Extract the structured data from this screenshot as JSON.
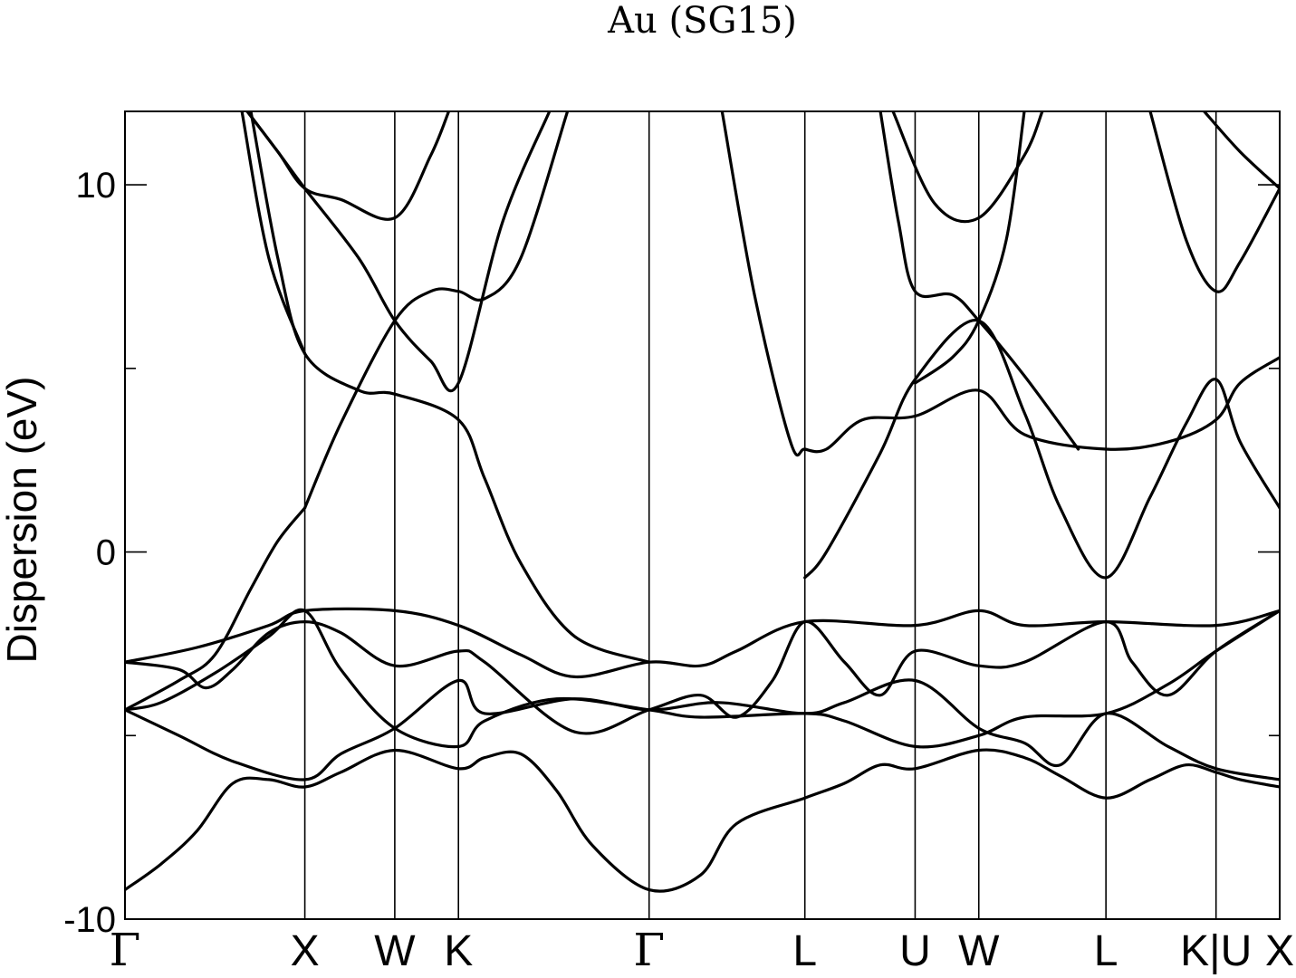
{
  "chart_data": {
    "type": "line",
    "title": "Au (SG15)",
    "xlabel": "",
    "ylabel": "Dispersion (eV)",
    "ylim": [
      -10,
      12
    ],
    "yticks": [
      -10,
      0,
      10
    ],
    "yticks_minor": [
      -5,
      5
    ],
    "grid": false,
    "legend": "none",
    "kpoints": [
      {
        "label": "Γ",
        "x": 0
      },
      {
        "label": "X",
        "x": 1.0
      },
      {
        "label": "W",
        "x": 1.5
      },
      {
        "label": "K",
        "x": 1.854
      },
      {
        "label": "Γ",
        "x": 2.914
      },
      {
        "label": "L",
        "x": 3.78
      },
      {
        "label": "U",
        "x": 4.393
      },
      {
        "label": "W",
        "x": 4.747
      },
      {
        "label": "L",
        "x": 5.454
      },
      {
        "label": "K|U",
        "x": 6.066
      },
      {
        "label": "X",
        "x": 6.42
      }
    ],
    "series": [
      {
        "points": [
          [
            0,
            -9.2
          ],
          [
            0.2,
            -8.5
          ],
          [
            0.4,
            -7.6
          ],
          [
            0.6,
            -6.3
          ],
          [
            0.8,
            -6.2
          ],
          [
            1.0,
            -6.4
          ],
          [
            1.2,
            -6.0
          ],
          [
            1.5,
            -5.4
          ],
          [
            1.854,
            -5.9
          ],
          [
            2.0,
            -5.6
          ],
          [
            2.2,
            -5.5
          ],
          [
            2.4,
            -6.5
          ],
          [
            2.6,
            -8.0
          ],
          [
            2.914,
            -9.2
          ],
          [
            3.2,
            -8.8
          ],
          [
            3.4,
            -7.4
          ],
          [
            3.78,
            -6.7
          ],
          [
            4.0,
            -6.3
          ],
          [
            4.2,
            -5.8
          ],
          [
            4.393,
            -5.9
          ],
          [
            4.747,
            -5.4
          ],
          [
            5.0,
            -5.6
          ],
          [
            5.2,
            -6.1
          ],
          [
            5.454,
            -6.7
          ],
          [
            5.7,
            -6.2
          ],
          [
            5.9,
            -5.8
          ],
          [
            6.066,
            -6.0
          ],
          [
            6.2,
            -6.2
          ],
          [
            6.42,
            -6.4
          ]
        ]
      },
      {
        "points": [
          [
            0,
            -4.3
          ],
          [
            0.3,
            -5.0
          ],
          [
            0.6,
            -5.7
          ],
          [
            1.0,
            -6.2
          ],
          [
            1.2,
            -5.5
          ],
          [
            1.5,
            -4.8
          ],
          [
            1.854,
            -3.5
          ],
          [
            2.0,
            -4.4
          ],
          [
            2.5,
            -4.0
          ],
          [
            2.914,
            -4.3
          ],
          [
            3.3,
            -4.1
          ],
          [
            3.78,
            -4.4
          ],
          [
            4.0,
            -4.1
          ],
          [
            4.393,
            -3.5
          ],
          [
            4.747,
            -4.8
          ],
          [
            5.0,
            -5.2
          ],
          [
            5.2,
            -5.8
          ],
          [
            5.454,
            -4.4
          ],
          [
            5.8,
            -5.3
          ],
          [
            6.066,
            -5.9
          ],
          [
            6.42,
            -6.2
          ]
        ]
      },
      {
        "points": [
          [
            0,
            -4.3
          ],
          [
            0.2,
            -4.1
          ],
          [
            0.5,
            -3.3
          ],
          [
            0.8,
            -2.3
          ],
          [
            1.0,
            -1.6
          ],
          [
            1.2,
            -3.2
          ],
          [
            1.5,
            -4.8
          ],
          [
            1.854,
            -5.3
          ],
          [
            2.0,
            -4.6
          ],
          [
            2.4,
            -4.0
          ],
          [
            2.914,
            -4.3
          ],
          [
            3.2,
            -4.5
          ],
          [
            3.78,
            -4.4
          ],
          [
            4.0,
            -4.6
          ],
          [
            4.393,
            -5.3
          ],
          [
            4.747,
            -5.0
          ],
          [
            5.0,
            -4.5
          ],
          [
            5.454,
            -4.4
          ],
          [
            5.8,
            -3.6
          ],
          [
            6.066,
            -2.7
          ],
          [
            6.42,
            -1.6
          ]
        ]
      },
      {
        "points": [
          [
            0,
            -3.0
          ],
          [
            0.3,
            -3.2
          ],
          [
            0.45,
            -3.7
          ],
          [
            0.6,
            -3.2
          ],
          [
            0.8,
            -2.2
          ],
          [
            1.0,
            -1.9
          ],
          [
            1.2,
            -2.2
          ],
          [
            1.5,
            -3.1
          ],
          [
            1.854,
            -2.7
          ],
          [
            2.0,
            -3.0
          ],
          [
            2.5,
            -4.9
          ],
          [
            2.914,
            -4.3
          ],
          [
            3.2,
            -3.9
          ],
          [
            3.4,
            -4.5
          ],
          [
            3.6,
            -3.5
          ],
          [
            3.78,
            -1.9
          ],
          [
            4.0,
            -3.0
          ],
          [
            4.2,
            -3.9
          ],
          [
            4.393,
            -2.7
          ],
          [
            4.747,
            -3.1
          ],
          [
            5.0,
            -3.0
          ],
          [
            5.454,
            -1.9
          ],
          [
            5.6,
            -3.0
          ],
          [
            5.8,
            -3.9
          ],
          [
            6.066,
            -2.7
          ],
          [
            6.42,
            -1.6
          ]
        ]
      },
      {
        "points": [
          [
            0,
            -3.0
          ],
          [
            0.4,
            -2.6
          ],
          [
            0.8,
            -2.0
          ],
          [
            1.0,
            -1.6
          ],
          [
            1.5,
            -1.6
          ],
          [
            1.854,
            -2.0
          ],
          [
            2.2,
            -2.8
          ],
          [
            2.5,
            -3.4
          ],
          [
            2.914,
            -3.0
          ],
          [
            3.2,
            -3.1
          ],
          [
            3.4,
            -2.7
          ],
          [
            3.78,
            -1.9
          ],
          [
            4.393,
            -2.0
          ],
          [
            4.747,
            -1.6
          ],
          [
            5.0,
            -2.0
          ],
          [
            5.454,
            -1.9
          ],
          [
            6.066,
            -2.0
          ],
          [
            6.42,
            -1.6
          ]
        ]
      },
      {
        "points": [
          [
            0.7,
            12.0
          ],
          [
            0.85,
            8.0
          ],
          [
            1.0,
            5.4
          ],
          [
            1.3,
            4.4
          ],
          [
            1.5,
            4.3
          ],
          [
            1.854,
            3.6
          ],
          [
            2.0,
            2.0
          ],
          [
            2.2,
            -0.3
          ],
          [
            2.5,
            -2.3
          ],
          [
            2.914,
            -3.0
          ]
        ]
      },
      {
        "points": [
          [
            3.32,
            12.0
          ],
          [
            3.5,
            7.0
          ],
          [
            3.7,
            3.0
          ],
          [
            3.78,
            2.8
          ],
          [
            3.9,
            2.8
          ],
          [
            4.1,
            3.6
          ],
          [
            4.393,
            3.7
          ],
          [
            4.747,
            4.4
          ],
          [
            5.0,
            3.2
          ],
          [
            5.454,
            2.8
          ],
          [
            5.8,
            3.0
          ],
          [
            6.066,
            3.6
          ],
          [
            6.2,
            4.6
          ],
          [
            6.42,
            5.3
          ]
        ]
      },
      {
        "points": [
          [
            3.78,
            -0.7
          ],
          [
            3.9,
            0.0
          ],
          [
            4.2,
            2.7
          ],
          [
            4.393,
            4.7
          ],
          [
            4.747,
            6.3
          ],
          [
            5.0,
            3.8
          ],
          [
            5.2,
            1.2
          ],
          [
            5.454,
            -0.7
          ],
          [
            5.7,
            1.5
          ],
          [
            5.9,
            3.5
          ],
          [
            6.066,
            4.7
          ],
          [
            6.2,
            3.0
          ],
          [
            6.42,
            1.2
          ]
        ]
      },
      {
        "points": [
          [
            0.65,
            12.0
          ],
          [
            0.8,
            8.0
          ],
          [
            1.0,
            5.4
          ]
        ]
      },
      {
        "points": [
          [
            1.0,
            1.2
          ],
          [
            1.2,
            3.5
          ],
          [
            1.5,
            6.3
          ],
          [
            1.7,
            7.1
          ],
          [
            1.854,
            7.1
          ],
          [
            2.0,
            6.9
          ],
          [
            2.2,
            8.0
          ],
          [
            2.46,
            12.0
          ]
        ]
      },
      {
        "points": [
          [
            0.68,
            12.0
          ],
          [
            0.85,
            10.9
          ],
          [
            1.0,
            9.9
          ],
          [
            1.3,
            8.0
          ],
          [
            1.5,
            6.3
          ],
          [
            1.7,
            5.2
          ],
          [
            1.854,
            4.6
          ],
          [
            2.1,
            9.0
          ],
          [
            2.36,
            12.0
          ]
        ]
      },
      {
        "points": [
          [
            0.68,
            12.0
          ],
          [
            0.85,
            10.9
          ],
          [
            1.0,
            9.9
          ],
          [
            1.2,
            9.6
          ],
          [
            1.5,
            9.1
          ],
          [
            1.7,
            10.8
          ],
          [
            1.8,
            12.0
          ]
        ]
      },
      {
        "points": [
          [
            1.0,
            1.2
          ],
          [
            0.85,
            0.3
          ],
          [
            0.7,
            -1.0
          ],
          [
            0.5,
            -2.8
          ],
          [
            0.3,
            -3.5
          ],
          [
            0.0,
            -4.3
          ]
        ]
      },
      {
        "points": [
          [
            4.2,
            12.0
          ],
          [
            4.3,
            9.0
          ],
          [
            4.393,
            7.1
          ],
          [
            4.6,
            7.0
          ],
          [
            4.747,
            6.3
          ],
          [
            5.0,
            4.8
          ],
          [
            5.3,
            2.8
          ]
        ]
      },
      {
        "points": [
          [
            4.27,
            12.0
          ],
          [
            4.5,
            9.5
          ],
          [
            4.747,
            9.1
          ],
          [
            5.0,
            10.8
          ],
          [
            5.1,
            12.0
          ]
        ]
      },
      {
        "points": [
          [
            4.393,
            4.6
          ],
          [
            4.6,
            5.3
          ],
          [
            4.747,
            6.3
          ],
          [
            4.9,
            8.5
          ],
          [
            5.0,
            12.0
          ]
        ]
      },
      {
        "points": [
          [
            5.7,
            12.0
          ],
          [
            5.9,
            8.5
          ],
          [
            6.066,
            7.1
          ],
          [
            6.2,
            7.9
          ],
          [
            6.42,
            9.9
          ]
        ]
      },
      {
        "points": [
          [
            6.0,
            12.0
          ],
          [
            6.2,
            10.9
          ],
          [
            6.42,
            9.9
          ]
        ]
      }
    ]
  }
}
